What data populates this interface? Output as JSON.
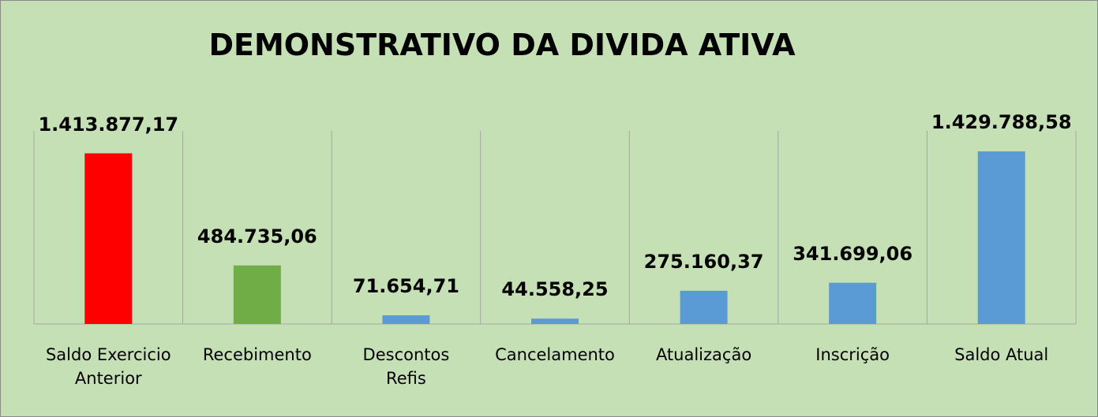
{
  "chart_data": {
    "type": "bar",
    "title": "DEMONSTRATIVO DA DIVIDA ATIVA",
    "categories": [
      "Saldo Exercicio\nAnterior",
      "Recebimento",
      "Descontos\nRefis",
      "Cancelamento",
      "Atualização",
      "Inscrição",
      "Saldo Atual"
    ],
    "values": [
      1413877.17,
      484735.06,
      71654.71,
      44558.25,
      275160.37,
      341699.06,
      1429788.58
    ],
    "value_labels": [
      "1.413.877,17",
      "484.735,06",
      "71.654,71",
      "44.558,25",
      "275.160,37",
      "341.699,06",
      "1.429.788,58"
    ],
    "colors": [
      "#ff0000",
      "#70ad47",
      "#5b9bd5",
      "#5b9bd5",
      "#5b9bd5",
      "#5b9bd5",
      "#5b9bd5"
    ],
    "ylim": [
      0,
      1600000
    ]
  }
}
